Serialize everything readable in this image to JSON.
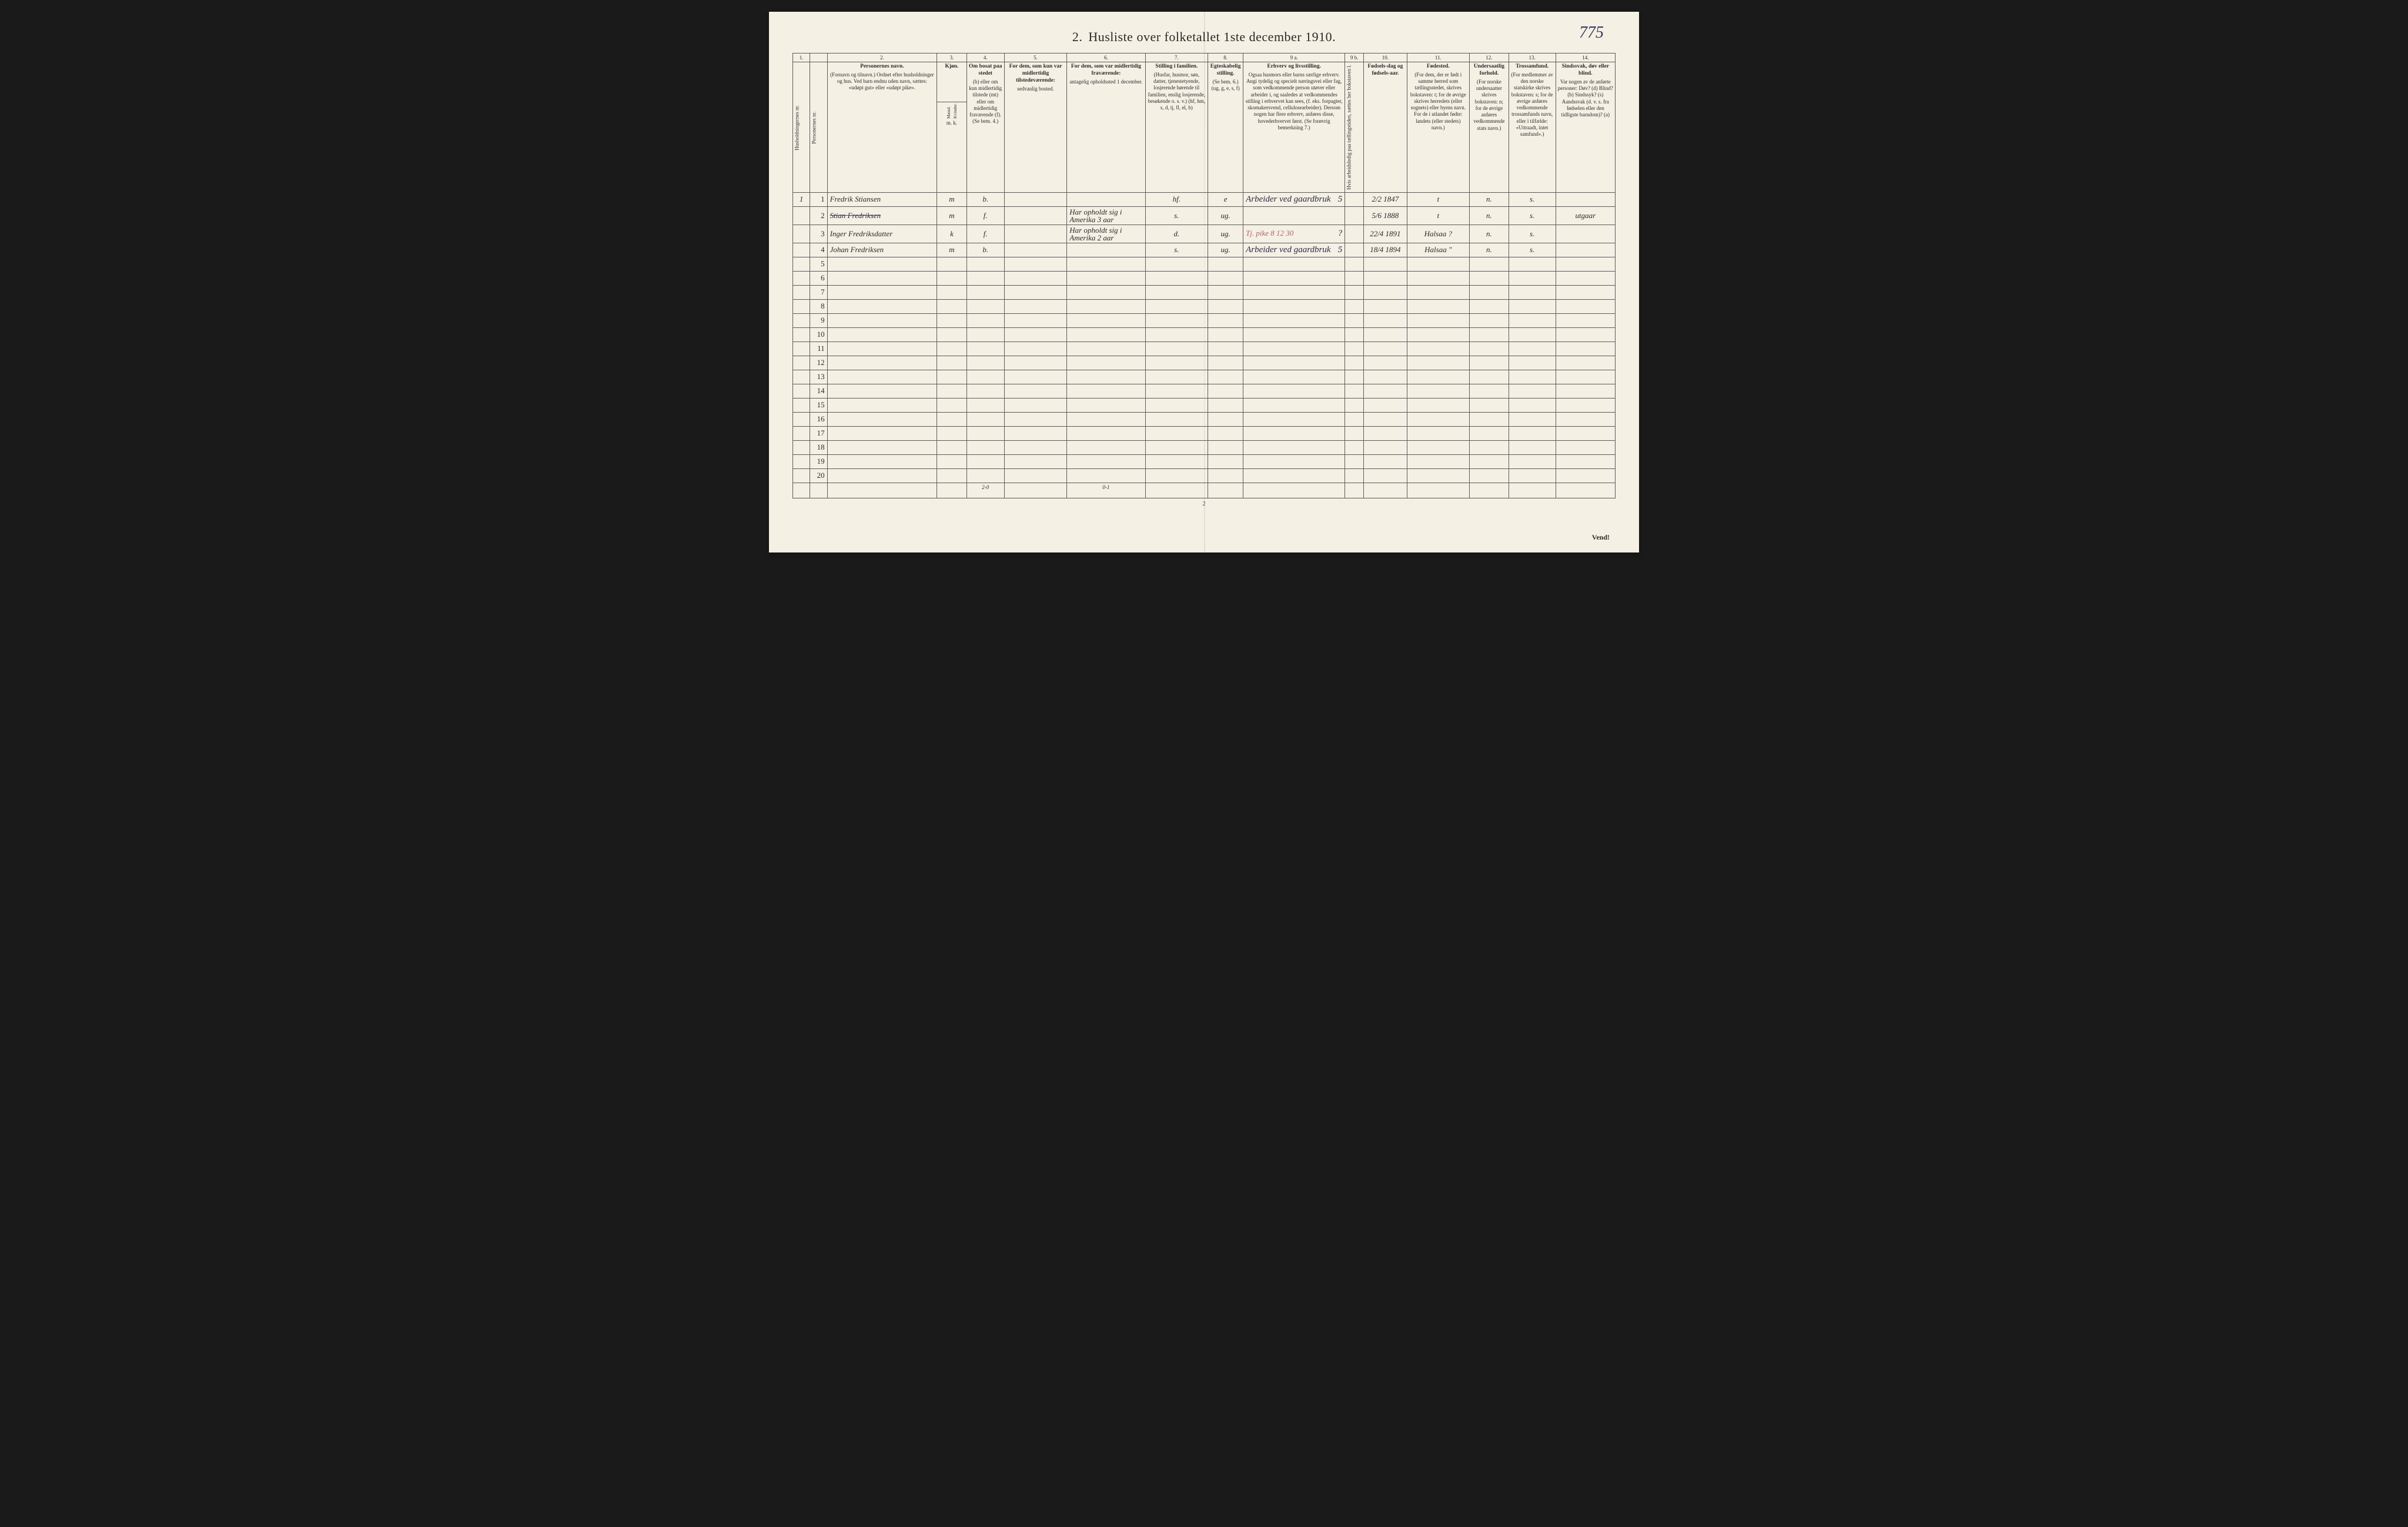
{
  "page_number_handwritten": "775",
  "title_prefix": "2.",
  "title": "Husliste over folketallet 1ste december 1910.",
  "footer_page_number": "2",
  "vend_text": "Vend!",
  "column_numbers": [
    "1.",
    "",
    "2.",
    "3.",
    "4.",
    "5.",
    "6.",
    "7.",
    "8.",
    "9 a.",
    "9 b.",
    "10.",
    "11.",
    "12.",
    "13.",
    "14."
  ],
  "headers": {
    "c1": "Husholdningernes nr.",
    "c1b": "Personernes nr.",
    "c2_main": "Personernes navn.",
    "c2_sub": "(Fornavn og tilnavn.)\nOrdnet efter husholdninger og hus.\nVed barn endnu uden navn, sættes: «udøpt gut» eller «udøpt pike».",
    "c3_main": "Kjøn.",
    "c3_m": "Mænd.",
    "c3_k": "Kvinder.",
    "c3_mk": "m.  k.",
    "c4_main": "Om bosat paa stedet",
    "c4_sub": "(b) eller om kun midlertidig tilstede (mt) eller om midlertidig fraværende (f).\n(Se bem. 4.)",
    "c5_main": "For dem, som kun var midlertidig tilstedeværende:",
    "c5_sub": "sedvanlig bosted.",
    "c6_main": "For dem, som var midlertidig fraværende:",
    "c6_sub": "antagelig opholdssted 1 december.",
    "c7_main": "Stilling i familien.",
    "c7_sub": "(Husfar, husmor, søn, datter, tjenestetyende, losjerende hørende til familien, enslig losjerende, besøkende o. s. v.)\n(hf, hm, s, d, tj, fl, el, b)",
    "c8_main": "Egteskabelig stilling.",
    "c8_sub": "(Se bem. 6.)\n(ug, g, e, s, f)",
    "c9a_main": "Erhverv og livsstilling.",
    "c9a_sub": "Ogsaa husmors eller barns særlige erhverv. Angi tydelig og specielt næringsvei eller fag, som vedkommende person utøver eller arbeider i, og saaledes at vedkommendes stilling i erhvervet kan sees, (f. eks. forpagter, skomakersvend, cellulosearbeider). Dersom nogen har flere erhverv, anføres disse, hovederhvervet først.\n(Se forøvrig bemerkning 7.)",
    "c9b": "Hvis arbeidsledig paa tællingstiden, sættes her bokstaven l.",
    "c10_main": "Fødsels-dag og fødsels-aar.",
    "c11_main": "Fødested.",
    "c11_sub": "(For dem, der er født i samme herred som tællingsstedet, skrives bokstaven: t; for de øvrige skrives herredets (eller sognets) eller byens navn. For de i utlandet fødte: landets (eller stedets) navn.)",
    "c12_main": "Undersaatlig forhold.",
    "c12_sub": "(For norske undersaatter skrives bokstaven: n; for de øvrige anføres vedkommende stats navn.)",
    "c13_main": "Trossamfund.",
    "c13_sub": "(For medlemmer av den norske statskirke skrives bokstaven: s; for de øvrige anføres vedkommende trossamfunds navn, eller i tilfælde: «Uttraadt, intet samfund».)",
    "c14_main": "Sindssvak, døv eller blind.",
    "c14_sub": "Var nogen av de anførte personer:\nDøv? (d)\nBlind? (b)\nSindssyk? (s)\nAandssvak (d. v. s. fra fødselen eller den tidligste barndom)? (a)"
  },
  "rows": [
    {
      "hh": "1",
      "pn": "1",
      "name": "Fredrik Stiansen",
      "sex": "m",
      "res": "b.",
      "c5": "",
      "c6": "",
      "fam": "hf.",
      "mar": "e",
      "occ": "Arbeider ved gaardbruk",
      "occ_suffix": "5",
      "l": "",
      "birth": "2/2 1847",
      "birthplace": "t",
      "nat": "n.",
      "rel": "s.",
      "c14": ""
    },
    {
      "hh": "",
      "pn": "2",
      "name": "Stian Fredriksen",
      "sex": "m",
      "res": "f.",
      "c5": "",
      "c6": "Har opholdt sig i Amerika 3 aar",
      "fam": "s.",
      "mar": "ug.",
      "occ": "",
      "occ_suffix": "",
      "l": "",
      "birth": "5/6 1888",
      "birthplace": "t",
      "nat": "n.",
      "rel": "s.",
      "c14": "utgaar",
      "strike": true
    },
    {
      "hh": "",
      "pn": "3",
      "name": "Inger Fredriksdatter",
      "sex": "k",
      "res": "f.",
      "c5": "",
      "c6": "Har opholdt sig i Amerika 2 aar",
      "fam": "d.",
      "mar": "ug.",
      "occ": "",
      "occ_red": "Tj. pike   8 12 30",
      "occ_suffix": "?",
      "l": "",
      "birth": "22/4 1891",
      "birthplace": "Halsaa ?",
      "nat": "n.",
      "rel": "s.",
      "c14": ""
    },
    {
      "hh": "",
      "pn": "4",
      "name": "Johan Fredriksen",
      "sex": "m",
      "res": "b.",
      "c5": "",
      "c6": "",
      "fam": "s.",
      "mar": "ug.",
      "occ": "Arbeider ved gaardbruk",
      "occ_suffix": "5",
      "l": "",
      "birth": "18/4 1894",
      "birthplace": "Halsaa \"",
      "nat": "n.",
      "rel": "s.",
      "c14": ""
    }
  ],
  "empty_row_count": 16,
  "totals": {
    "col_res": "2-0",
    "col_c6": "0-1"
  },
  "col_widths_pct": [
    2.2,
    2.2,
    14,
    3.8,
    4.8,
    8,
    10,
    8,
    4.5,
    13,
    2.4,
    5.5,
    8,
    5,
    6,
    7.6
  ]
}
